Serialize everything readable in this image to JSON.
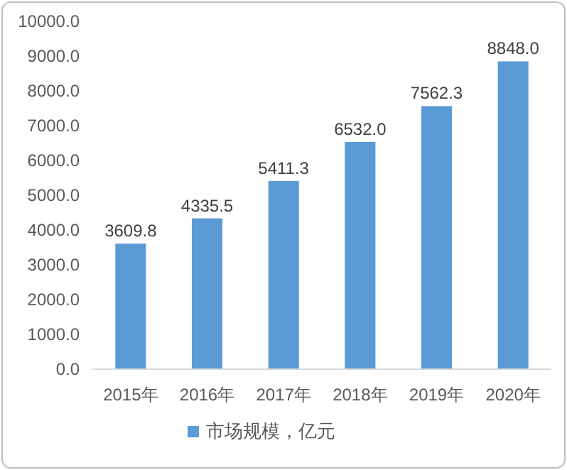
{
  "chart_data": {
    "type": "bar",
    "categories": [
      "2015年",
      "2016年",
      "2017年",
      "2018年",
      "2019年",
      "2020年"
    ],
    "series": [
      {
        "name": "市场规模，亿元",
        "color": "#5b9bd5",
        "values": [
          3609.8,
          4335.5,
          5411.3,
          6532.0,
          7562.3,
          8848.0
        ],
        "value_labels": [
          "3609.8",
          "4335.5",
          "5411.3",
          "6532.0",
          "7562.3",
          "8848.0"
        ]
      }
    ],
    "ylim": [
      0,
      10000
    ],
    "yticks": [
      {
        "value": 0,
        "label": "0.0"
      },
      {
        "value": 1000,
        "label": "1000.0"
      },
      {
        "value": 2000,
        "label": "2000.0"
      },
      {
        "value": 3000,
        "label": "3000.0"
      },
      {
        "value": 4000,
        "label": "4000.0"
      },
      {
        "value": 5000,
        "label": "5000.0"
      },
      {
        "value": 6000,
        "label": "6000.0"
      },
      {
        "value": 7000,
        "label": "7000.0"
      },
      {
        "value": 8000,
        "label": "8000.0"
      },
      {
        "value": 9000,
        "label": "9000.0"
      },
      {
        "value": 10000,
        "label": "10000.0"
      }
    ],
    "legend": "bottom"
  }
}
